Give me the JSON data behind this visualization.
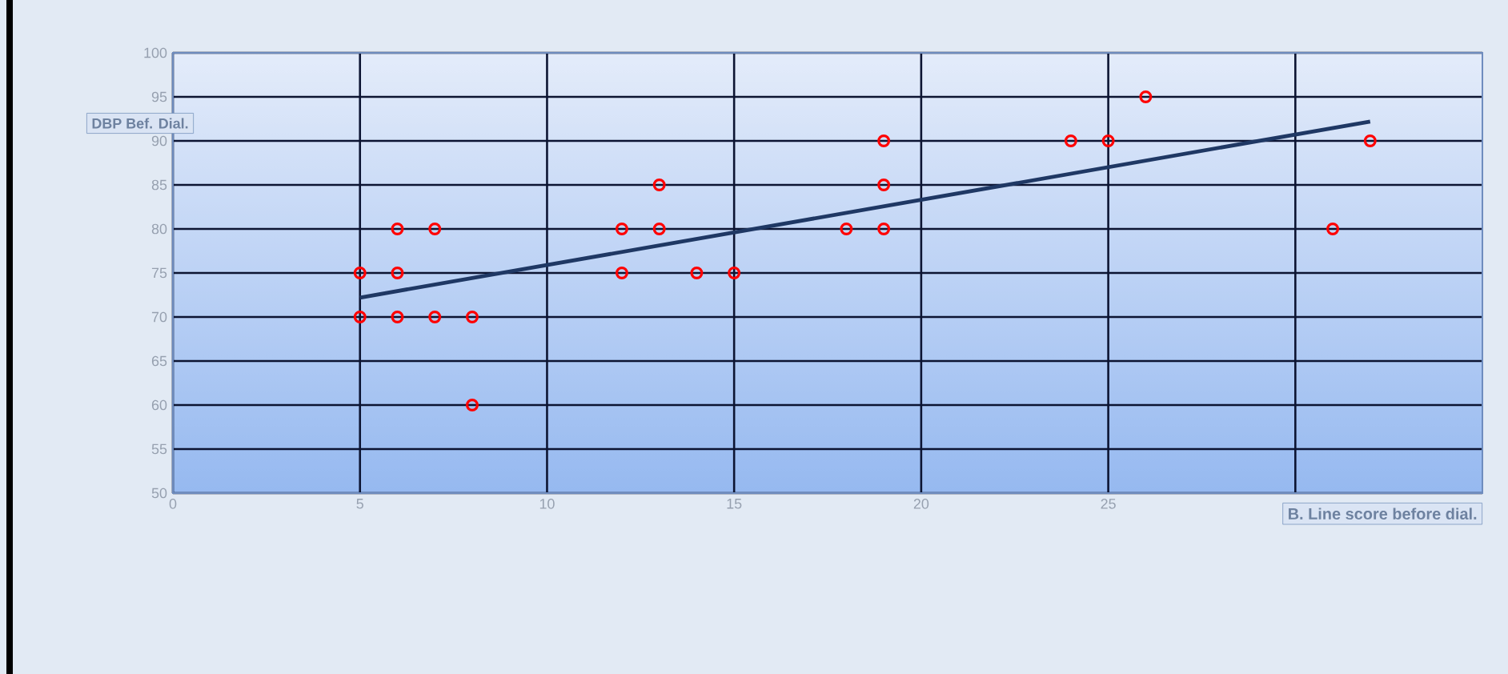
{
  "chart_data": {
    "type": "scatter",
    "xlabel": "B. Line score before dial.",
    "ylabel": "DBP Bef. Dial.",
    "xlim": [
      0,
      35
    ],
    "ylim": [
      50,
      100
    ],
    "xticks": [
      0,
      5,
      10,
      15,
      20,
      25,
      {
        "value": 30,
        "label": null
      }
    ],
    "yticks": [
      50,
      55,
      60,
      65,
      70,
      75,
      80,
      85,
      90,
      95,
      100
    ],
    "grid": true,
    "series": [
      {
        "color": "#ff0000",
        "marker": "circle",
        "x": [
          5,
          5,
          6,
          6,
          6,
          7,
          7,
          8,
          8,
          12,
          12,
          13,
          13,
          14,
          15,
          18,
          19,
          19,
          19,
          24,
          25,
          26,
          31,
          32
        ],
        "values": [
          70,
          75,
          70,
          75,
          80,
          70,
          80,
          70,
          60,
          75,
          80,
          80,
          85,
          75,
          75,
          80,
          80,
          85,
          90,
          90,
          90,
          95,
          80,
          90
        ]
      },
      {
        "type": "line",
        "color": "#1f3864",
        "line_style": "solid",
        "x": [
          5,
          32
        ],
        "values": [
          72.2,
          92.2
        ]
      }
    ]
  }
}
